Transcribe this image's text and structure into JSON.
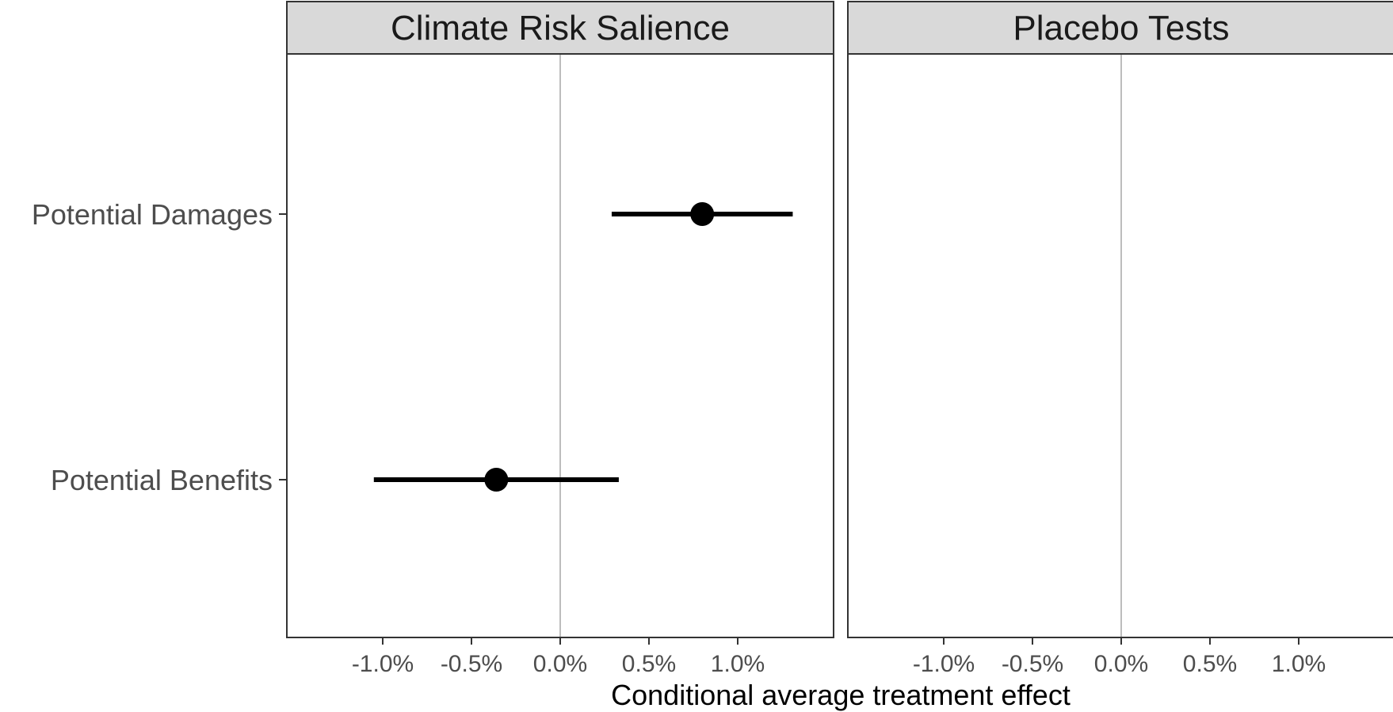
{
  "chart_data": {
    "type": "scatter",
    "subtype": "coefficient-plot-faceted",
    "xlabel": "Conditional average treatment effect",
    "ylabel": "",
    "x_unit": "%",
    "xlim": [
      -1.5,
      1.55
    ],
    "x_ticks": [
      -1.0,
      -0.5,
      0.0,
      0.5,
      1.0
    ],
    "x_tick_labels": [
      "-1.0%",
      "-0.5%",
      "0.0%",
      "0.5%",
      "1.0%"
    ],
    "categories": [
      "Potential Damages",
      "Potential Benefits"
    ],
    "reference_line_x": 0.0,
    "grid": false,
    "facets": [
      {
        "title": "Climate Risk Salience",
        "points": [
          {
            "category": "Potential Damages",
            "estimate": 0.8,
            "ci_low": 0.29,
            "ci_high": 1.31
          },
          {
            "category": "Potential Benefits",
            "estimate": -0.36,
            "ci_low": -1.05,
            "ci_high": 0.33
          }
        ]
      },
      {
        "title": "Placebo Tests",
        "points": []
      }
    ],
    "colors": {
      "points": "#000000",
      "strip_fill": "#d9d9d9",
      "panel_border": "#333333",
      "reference_line": "#bdbdbd",
      "tick_text": "#4d4d4d"
    }
  }
}
